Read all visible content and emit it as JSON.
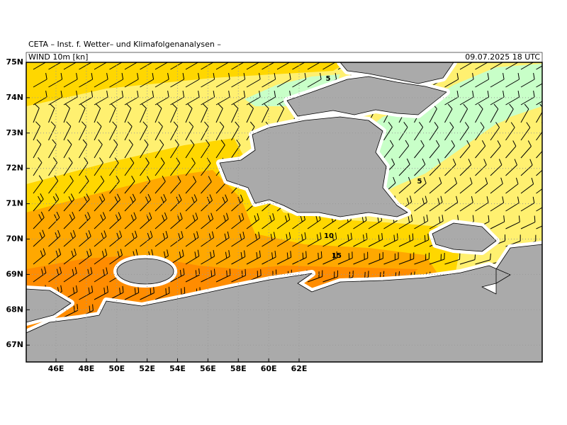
{
  "header": {
    "title": "CETA – Inst. f. Wetter– und Klimafolgenanalysen –",
    "variable": "WIND 10m [kn]",
    "valid_time": "09.07.2025 18 UTC"
  },
  "map": {
    "lat_labels": [
      "75N",
      "74N",
      "73N",
      "72N",
      "71N",
      "70N",
      "69N",
      "68N",
      "67N"
    ],
    "lon_labels": [
      "46E",
      "48E",
      "50E",
      "52E",
      "54E",
      "56E",
      "58E",
      "60E",
      "62E"
    ],
    "contour_labels": [
      "5",
      "5",
      "10",
      "15"
    ]
  }
}
